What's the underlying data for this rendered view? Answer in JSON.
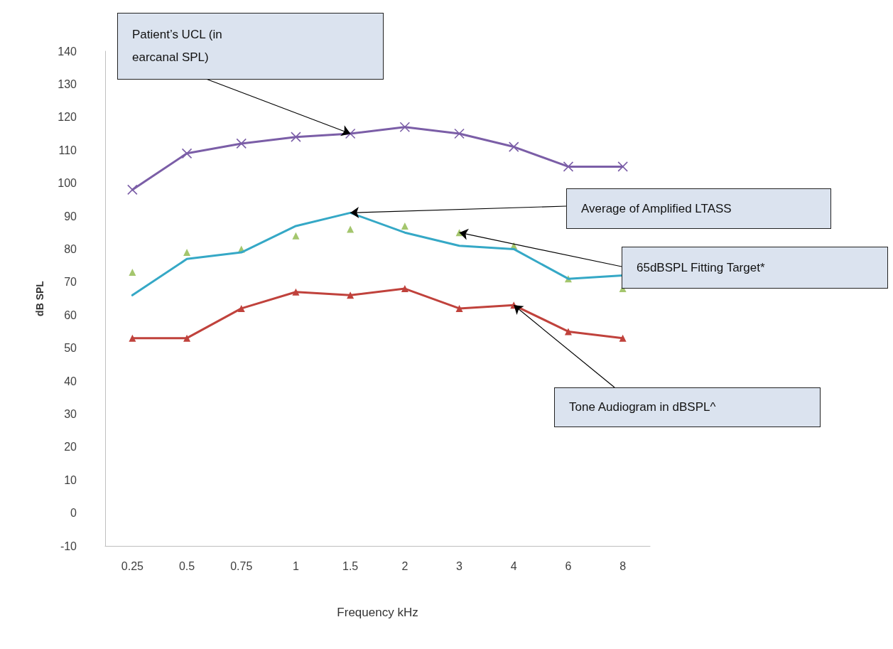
{
  "chart_data": {
    "type": "line",
    "xlabel": "Frequency kHz",
    "ylabel": "dB SPL",
    "categories": [
      "0.25",
      "0.5",
      "0.75",
      "1",
      "1.5",
      "2",
      "3",
      "4",
      "6",
      "8"
    ],
    "ylim": [
      -10,
      140
    ],
    "yticks": [
      -10,
      0,
      10,
      20,
      30,
      40,
      50,
      60,
      70,
      80,
      90,
      100,
      110,
      120,
      130,
      140
    ],
    "grid": false,
    "series": [
      {
        "marker": "cross",
        "color": "#7b5ea7",
        "values": [
          98,
          109,
          112,
          114,
          115,
          117,
          115,
          111,
          105,
          105
        ]
      },
      {
        "marker": "none",
        "color": "#35a8c6",
        "values": [
          66,
          77,
          79,
          87,
          91,
          85,
          81,
          80,
          71,
          72
        ]
      },
      {
        "type": "scatter",
        "marker": "triangle",
        "color": "#8db849",
        "values": [
          73,
          79,
          80,
          84,
          86,
          87,
          85,
          81,
          71,
          68
        ]
      },
      {
        "marker": "triangle",
        "color": "#c0423c",
        "values": [
          53,
          53,
          62,
          67,
          66,
          68,
          62,
          63,
          55,
          53
        ]
      }
    ],
    "annotations": [
      {
        "text": "Patient’s UCL (in earcanal SPL)",
        "x": "1.5",
        "y": 115
      },
      {
        "text": "Average of Amplified LTASS",
        "x": "1.5",
        "y": 91
      },
      {
        "text": "65dBSPL Fitting Target*",
        "x": "3",
        "y": 85
      },
      {
        "text": "Tone Audiogram in dBSPL^",
        "x": "4",
        "y": 63
      }
    ]
  }
}
